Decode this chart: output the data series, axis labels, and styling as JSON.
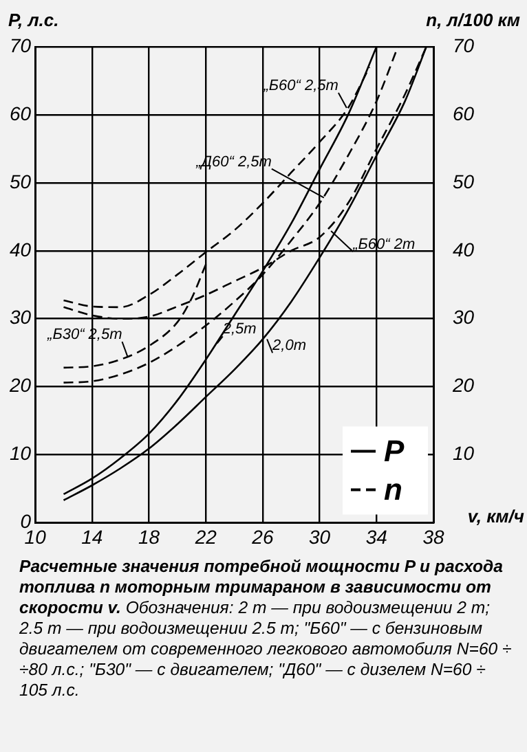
{
  "chart_data": {
    "type": "line",
    "title": "Расчетные значения потребной мощности P и расхода топлива n моторным тримараном в зависимости от скорости v.",
    "subtitle": "Обозначения: 2 т — при водоизмещении 2 т; 2.5 т — при водоизмещении 2.5 т; \"Б60\" — с бензиновым двигателем от современного легкового автомобиля N=60 ÷ ÷80 л.с.; \"Б30\" — с двигателем; \"Д60\" — с дизелем N=60 ÷ 105 л.с.",
    "xlabel": "v, км/ч",
    "ylabel": "P, л.с.",
    "y2label": "n, л/100 км",
    "xlim": [
      10,
      38
    ],
    "xticks": [
      10,
      14,
      18,
      22,
      26,
      30,
      34,
      38
    ],
    "ylim": [
      0,
      70
    ],
    "yticks": [
      0,
      10,
      20,
      30,
      40,
      50,
      60,
      70
    ],
    "y2lim": [
      0,
      70
    ],
    "y2ticks": [
      10,
      20,
      30,
      40,
      50,
      60,
      70
    ],
    "grid": true,
    "legend": "bottom right",
    "marker": "none",
    "series": [
      {
        "name": "P",
        "color": "#000000",
        "line_style": "solid",
        "x": [
          12,
          14,
          16,
          18,
          20,
          22,
          24,
          26,
          28,
          30,
          32,
          34
        ],
        "values": [
          4.2,
          6.5,
          9.5,
          13.1,
          18,
          24,
          30.5,
          37,
          44,
          52,
          60,
          70
        ]
      },
      {
        "color": "#000000",
        "line_style": "solid",
        "x": [
          12,
          14,
          16,
          18,
          20,
          22,
          24,
          26,
          28,
          30,
          32,
          34,
          36,
          37.5
        ],
        "values": [
          3.3,
          5.5,
          8,
          10.9,
          14.5,
          18.5,
          22.5,
          27,
          32.5,
          39,
          46,
          54,
          62,
          70
        ]
      },
      {
        "name": "n",
        "color": "#000000",
        "line_style": "dashed",
        "x": [
          12,
          14,
          16,
          18,
          20,
          22,
          24,
          26,
          28,
          30,
          32,
          33.5
        ],
        "values": [
          32.7,
          31.8,
          31.7,
          33.5,
          36.5,
          39.8,
          43,
          47,
          51.5,
          56,
          61,
          67
        ]
      },
      {
        "color": "#000000",
        "line_style": "dashed",
        "x": [
          12,
          14,
          16,
          18,
          20,
          22,
          24,
          26,
          28,
          30,
          32,
          34,
          36,
          37.5
        ],
        "values": [
          31.7,
          30.5,
          30,
          30.3,
          31.8,
          33.5,
          35.5,
          37.5,
          40,
          42,
          47,
          55,
          63,
          70
        ]
      },
      {
        "color": "#000000",
        "line_style": "dashed",
        "x": [
          12,
          14,
          16,
          18,
          20,
          21,
          22
        ],
        "values": [
          22.8,
          23,
          24,
          26,
          29.5,
          33,
          38
        ]
      },
      {
        "color": "#000000",
        "line_style": "dashed",
        "x": [
          12,
          14,
          16,
          18,
          20,
          22,
          24,
          26,
          28,
          30,
          32,
          34,
          35.5
        ],
        "values": [
          20.6,
          20.8,
          21.8,
          23.5,
          26,
          29,
          32.5,
          36.5,
          41.5,
          47,
          54,
          62,
          70
        ]
      }
    ],
    "annotations": [
      {
        "text": "„Б60“ 2,5т",
        "x": 31.9,
        "y": 61
      },
      {
        "text": "„Д60“ 2,5т",
        "x": 30.3,
        "y": 47.8
      },
      {
        "text": "„Б60“ 2т",
        "x": 30.8,
        "y": 42.9
      },
      {
        "text": "„Б30“ 2,5т",
        "x": 16.5,
        "y": 24.4
      },
      {
        "text": "2,5т",
        "x": 22.8,
        "y": 26.4
      },
      {
        "text": "2,0т",
        "x": 26.3,
        "y": 27
      }
    ]
  }
}
